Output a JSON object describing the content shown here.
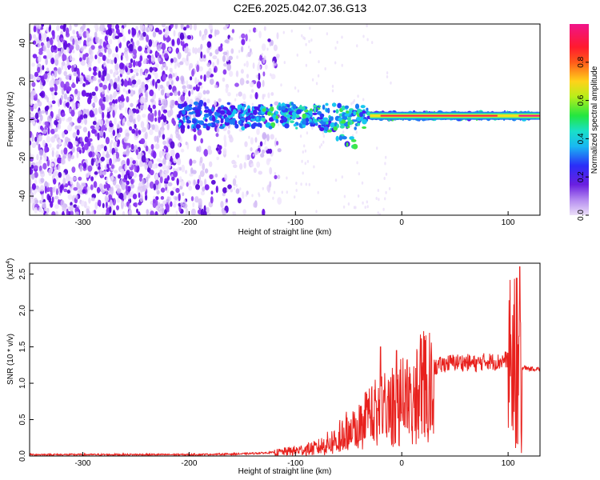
{
  "title": "C2E6.2025.042.07.36.G13",
  "chart_data": [
    {
      "type": "heatmap",
      "xlabel": "Height of straight line (km)",
      "ylabel": "Frequency (Hz)",
      "xlim": [
        -350,
        130
      ],
      "ylim": [
        -50,
        50
      ],
      "xticks": [
        -300,
        -200,
        -100,
        0,
        100
      ],
      "xtick_labels": [
        "-300",
        "-200",
        "-100",
        "0",
        "100"
      ],
      "yticks": [
        -40,
        -20,
        0,
        20,
        40
      ],
      "ytick_labels": [
        "-40",
        "-20",
        "0",
        "20",
        "40"
      ],
      "colorbar": {
        "label": "Normalized spectral amplitude",
        "range": [
          0,
          1
        ],
        "ticks": [
          0.0,
          0.2,
          0.4,
          0.6,
          0.8
        ],
        "tick_labels": [
          "0.0",
          "0.2",
          "0.4",
          "0.6",
          "0.8"
        ],
        "colormap": "rainbow (white/lavender → purple → blue → cyan → green → yellow → red → magenta)"
      },
      "features": {
        "noise_region_x": [
          -350,
          -130
        ],
        "signal_band_x": [
          -210,
          130
        ],
        "signal_band_frequency": 2,
        "strong_signal_x": [
          -30,
          110
        ]
      }
    },
    {
      "type": "line",
      "xlabel": "Height of straight line (km)",
      "ylabel": "SNR (10 * v/v)",
      "y_multiplier": "(x10^4)",
      "xlim": [
        -350,
        130
      ],
      "ylim": [
        0,
        2.65
      ],
      "xticks": [
        -300,
        -200,
        -100,
        0,
        100
      ],
      "xtick_labels": [
        "-300",
        "-200",
        "-100",
        "0",
        "100"
      ],
      "yticks": [
        0.0,
        0.5,
        1.0,
        1.5,
        2.0,
        2.5
      ],
      "ytick_labels": [
        "0.0",
        "0.5",
        "1.0",
        "1.5",
        "2.0",
        "2.5"
      ],
      "series_color": "#e8211d",
      "envelope": {
        "x": [
          -350,
          -200,
          -150,
          -120,
          -100,
          -80,
          -60,
          -50,
          -40,
          -30,
          -20,
          -10,
          0,
          10,
          20,
          30,
          40,
          50,
          60,
          70,
          80,
          90,
          100,
          105,
          110,
          115,
          120,
          130
        ],
        "y": [
          0.02,
          0.02,
          0.03,
          0.05,
          0.08,
          0.12,
          0.25,
          0.4,
          0.5,
          0.7,
          0.75,
          0.8,
          0.95,
          1.05,
          1.15,
          1.22,
          1.28,
          1.3,
          1.3,
          1.28,
          1.32,
          1.3,
          1.35,
          1.6,
          1.2,
          1.22,
          1.2,
          1.2
        ]
      },
      "peaks": [
        {
          "x": -20,
          "y": 1.5
        },
        {
          "x": -5,
          "y": 1.45
        },
        {
          "x": 108,
          "y": 2.45
        },
        {
          "x": 111,
          "y": 2.6
        }
      ]
    }
  ]
}
